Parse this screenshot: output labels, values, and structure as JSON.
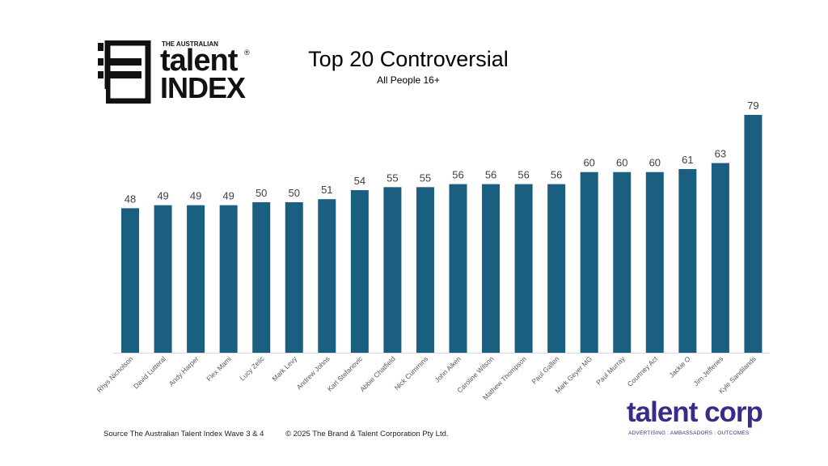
{
  "brand": {
    "logo_top": "THE AUSTRALIAN",
    "logo_main": "talent",
    "logo_sub": "INDEX",
    "logo_reg": "®"
  },
  "header": {
    "title": "Top 20 Controversial",
    "subtitle": "All People 16+"
  },
  "footer": {
    "source": "Source The Australian Talent Index Wave 3 & 4",
    "copyright": "© 2025 The Brand & Talent Corporation Pty Ltd.",
    "corp_name": "talent corp",
    "corp_tagline": "ADVERTISING : AMBASSADORS : OUTCOMES"
  },
  "colors": {
    "bar": "#1a5e80",
    "corp": "#3d2a86"
  },
  "chart_data": {
    "type": "bar",
    "title": "Top 20 Controversial",
    "subtitle": "All People 16+",
    "xlabel": "",
    "ylabel": "",
    "ylim": [
      0,
      79
    ],
    "grid": false,
    "legend": "none",
    "categories": [
      "Rhys Nicholson",
      "David Lutteral",
      "Andy Harper",
      "Flex Mami",
      "Lucy Zelic",
      "Mark Levy",
      "Andrew Johns",
      "Karl Stefanovic",
      "Abbie Chatfield",
      "Nick Cummins",
      "John Aiken",
      "Caroline Wilson",
      "Mathew Thompson",
      "Paul Gallen",
      "Mark Geyer MG",
      "Paul Murray",
      "Courtney Act",
      "Jackie O",
      "Jim Jefferies",
      "Kyle Sandilands"
    ],
    "values": [
      48,
      49,
      49,
      49,
      50,
      50,
      51,
      54,
      55,
      55,
      56,
      56,
      56,
      56,
      60,
      60,
      60,
      61,
      63,
      79
    ]
  }
}
